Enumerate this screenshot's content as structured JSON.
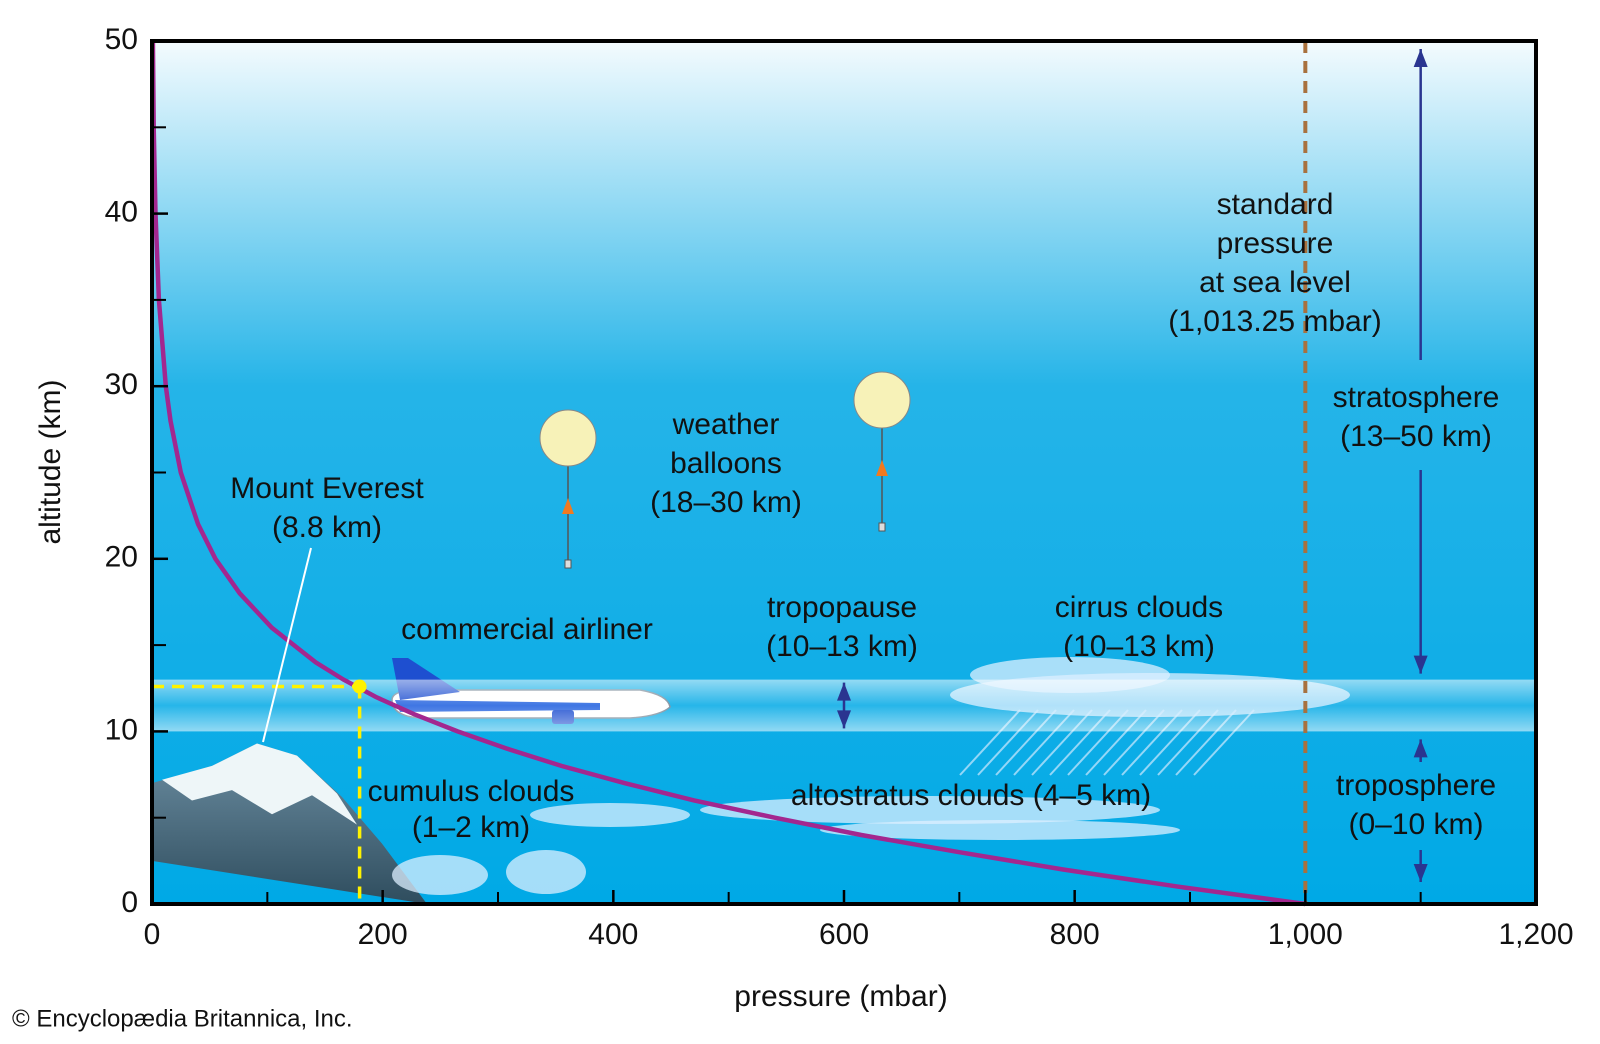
{
  "chart_data": {
    "type": "line",
    "xlabel": "pressure (mbar)",
    "ylabel": "altitude (km)",
    "credit": "© Encyclopædia Britannica, Inc.",
    "x": [
      1000,
      890,
      790,
      700,
      615,
      540,
      470,
      410,
      355,
      308,
      265,
      227,
      194,
      166,
      142,
      104,
      76,
      55,
      40,
      25,
      16,
      12,
      6,
      3,
      1.5,
      0.8
    ],
    "series": [
      {
        "color": "#a3278f",
        "values": [
          0,
          1,
          2,
          3,
          4,
          5,
          6,
          7,
          8,
          9,
          10,
          11,
          12,
          13,
          14,
          16,
          18,
          20,
          22,
          25,
          28,
          30,
          35,
          40,
          45,
          50
        ]
      }
    ],
    "xlim": [
      0,
      1200
    ],
    "ylim": [
      0,
      50
    ],
    "xticks": [
      0,
      200,
      400,
      600,
      800,
      {
        "value": 1000,
        "label": "1,000"
      },
      {
        "value": 1200,
        "label": "1,200"
      }
    ],
    "xminorticks": [
      100,
      300,
      500,
      700,
      900,
      1100
    ],
    "yticks": [
      0,
      10,
      20,
      30,
      40,
      50
    ],
    "yminorticks": [
      5,
      15,
      25,
      35,
      45
    ],
    "reference_line": {
      "x": 1000,
      "color": "#a8713e"
    },
    "marker": {
      "x": 180,
      "y": 12.6,
      "color": "#fff200"
    },
    "band": {
      "from": 10,
      "to": 13
    },
    "annotations": [
      {
        "lines": [
          "standard",
          "pressure",
          "at sea level",
          "(1,013.25 mbar)"
        ]
      },
      {
        "lines": [
          "stratosphere",
          "(13–50 km)"
        ]
      },
      {
        "lines": [
          "troposphere",
          "(0–10 km)"
        ]
      },
      {
        "lines": [
          "weather",
          "balloons",
          "(18–30 km)"
        ]
      },
      {
        "lines": [
          "Mount Everest",
          "(8.8 km)"
        ]
      },
      {
        "lines": [
          "commercial airliner"
        ]
      },
      {
        "lines": [
          "tropopause",
          "(10–13 km)"
        ]
      },
      {
        "lines": [
          "cirrus clouds",
          "(10–13 km)"
        ]
      },
      {
        "lines": [
          "cumulus clouds",
          "(1–2 km)"
        ]
      },
      {
        "lines": [
          "altostratus clouds (4–5 km)"
        ]
      }
    ]
  }
}
